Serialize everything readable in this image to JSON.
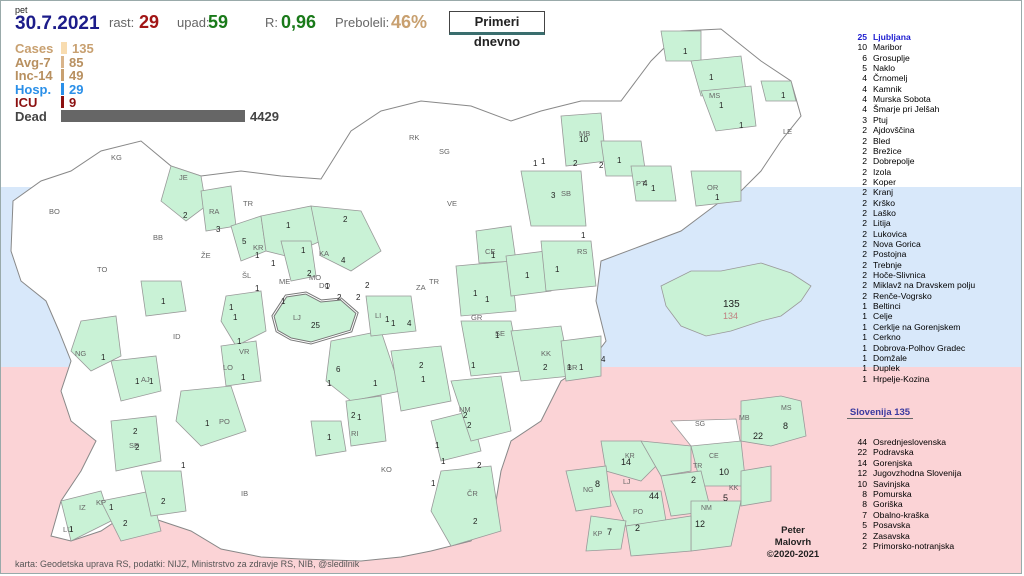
{
  "header": {
    "day": "pet",
    "date": "30.7.2021",
    "rast_label": "rast:",
    "rast_value": "29",
    "upad_label": "upad:",
    "upad_value": "59",
    "r_label": "R:",
    "r_value": "0,96",
    "preboleli_label": "Preboleli:",
    "preboleli_value": "46%",
    "primeri_button": "Primeri dnevno"
  },
  "stats": [
    {
      "label": "Cases",
      "value": "135",
      "color": "#f8dcb0",
      "label_color": "#c8a070",
      "fraction": 0.032
    },
    {
      "label": "Avg-7",
      "value": "85",
      "color": "#d9b48a",
      "label_color": "#b89060",
      "fraction": 0.018
    },
    {
      "label": "Inc-14",
      "value": "49",
      "color": "#c8a070",
      "label_color": "#b89060",
      "fraction": 0.011
    },
    {
      "label": "Hosp.",
      "value": "29",
      "color": "#2a8fe8",
      "label_color": "#2a8fe8",
      "fraction": 0.004
    },
    {
      "label": "ICU",
      "value": "9",
      "color": "#8b1010",
      "label_color": "#8b1010",
      "fraction": 0.002
    },
    {
      "label": "Dead",
      "value": "4429",
      "color": "#666666",
      "label_color": "#444444",
      "fraction": 1.0
    }
  ],
  "colors": {
    "with_cases": "#c9f2d6",
    "no_cases": "#ffffff",
    "border": "#999999",
    "label": "#666666"
  },
  "map_labels": {
    "municipal_codes": [
      "KG",
      "BO",
      "TO",
      "BB",
      "ŽE",
      "JE",
      "RA",
      "TR",
      "KR",
      "ŠL",
      "ME",
      "KA",
      "DO",
      "MO",
      "LJ",
      "VR",
      "LO",
      "ID",
      "NG",
      "AJ",
      "PO",
      "SE",
      "IZ",
      "KP",
      "LU",
      "RI",
      "KO",
      "IB",
      "ČR",
      "NM",
      "BR",
      "KK",
      "SE",
      "LI",
      "ZA",
      "TR",
      "CE",
      "RS",
      "SB",
      "PT",
      "OR",
      "MB",
      "MS",
      "LE",
      "RK",
      "SG",
      "VE",
      "GR"
    ],
    "case_numbers": [
      "1",
      "1",
      "2",
      "1",
      "1",
      "5",
      "3",
      "1",
      "1",
      "4",
      "2",
      "2",
      "1",
      "1",
      "1",
      "1",
      "25",
      "6",
      "1",
      "1",
      "1",
      "1",
      "1",
      "2",
      "2",
      "1",
      "2",
      "2",
      "1",
      "1",
      "2",
      "1",
      "1",
      "2",
      "1",
      "2",
      "1",
      "2",
      "1",
      "1",
      "4",
      "1",
      "1",
      "1",
      "1",
      "3",
      "10",
      "2",
      "2",
      "1",
      "1",
      "4",
      "1",
      "1",
      "1",
      "1",
      "1",
      "1",
      "1",
      "1",
      "1",
      "1",
      "2",
      "2",
      "1",
      "1",
      "1",
      "2",
      "1",
      "1",
      "4",
      "1",
      "1",
      "2",
      "2",
      "2",
      "1",
      "1"
    ],
    "inset_total": "135",
    "inset_previous": "134"
  },
  "ranking": [
    {
      "n": "25",
      "name": "Ljubljana"
    },
    {
      "n": "10",
      "name": "Maribor"
    },
    {
      "n": "6",
      "name": "Grosuplje"
    },
    {
      "n": "5",
      "name": "Naklo"
    },
    {
      "n": "4",
      "name": "Črnomelj"
    },
    {
      "n": "4",
      "name": "Kamnik"
    },
    {
      "n": "4",
      "name": "Murska Sobota"
    },
    {
      "n": "4",
      "name": "Šmarje pri Jelšah"
    },
    {
      "n": "3",
      "name": "Ptuj"
    },
    {
      "n": "2",
      "name": "Ajdovščina"
    },
    {
      "n": "2",
      "name": "Bled"
    },
    {
      "n": "2",
      "name": "Brežice"
    },
    {
      "n": "2",
      "name": "Dobrepolje"
    },
    {
      "n": "2",
      "name": "Izola"
    },
    {
      "n": "2",
      "name": "Koper"
    },
    {
      "n": "2",
      "name": "Kranj"
    },
    {
      "n": "2",
      "name": "Krško"
    },
    {
      "n": "2",
      "name": "Laško"
    },
    {
      "n": "2",
      "name": "Litija"
    },
    {
      "n": "2",
      "name": "Lukovica"
    },
    {
      "n": "2",
      "name": "Nova Gorica"
    },
    {
      "n": "2",
      "name": "Postojna"
    },
    {
      "n": "2",
      "name": "Trebnje"
    },
    {
      "n": "2",
      "name": "Hoče-Slivnica"
    },
    {
      "n": "2",
      "name": "Miklavž na Dravskem polju"
    },
    {
      "n": "2",
      "name": "Renče-Vogrsko"
    },
    {
      "n": "1",
      "name": "Beltinci"
    },
    {
      "n": "1",
      "name": "Celje"
    },
    {
      "n": "1",
      "name": "Cerklje na Gorenjskem"
    },
    {
      "n": "1",
      "name": "Cerkno"
    },
    {
      "n": "1",
      "name": "Dobrova-Polhov Gradec"
    },
    {
      "n": "1",
      "name": "Domžale"
    },
    {
      "n": "1",
      "name": "Duplek"
    },
    {
      "n": "1",
      "name": "Hrpelje-Kozina"
    }
  ],
  "slovenia_title": "Slovenija 135",
  "regions": [
    {
      "n": "44",
      "name": "Osrednjeslovenska"
    },
    {
      "n": "22",
      "name": "Podravska"
    },
    {
      "n": "14",
      "name": "Gorenjska"
    },
    {
      "n": "12",
      "name": "Jugovzhodna Slovenija"
    },
    {
      "n": "10",
      "name": "Savinjska"
    },
    {
      "n": "8",
      "name": "Pomurska"
    },
    {
      "n": "8",
      "name": "Goriška"
    },
    {
      "n": "7",
      "name": "Obalno-kraška"
    },
    {
      "n": "5",
      "name": "Posavska"
    },
    {
      "n": "2",
      "name": "Zasavska"
    },
    {
      "n": "2",
      "name": "Primorsko-notranjska"
    }
  ],
  "region_map_labels": [
    {
      "code": "SG",
      "n": ""
    },
    {
      "code": "MB",
      "n": "22"
    },
    {
      "code": "MS",
      "n": "8"
    },
    {
      "code": "KR",
      "n": "14"
    },
    {
      "code": "TR",
      "n": "2"
    },
    {
      "code": "CE",
      "n": "10"
    },
    {
      "code": "NG",
      "n": "8"
    },
    {
      "code": "LJ",
      "n": "44"
    },
    {
      "code": "KK",
      "n": "5"
    },
    {
      "code": "PO",
      "n": "2"
    },
    {
      "code": "NM",
      "n": "12"
    },
    {
      "code": "KP",
      "n": "7"
    }
  ],
  "author": {
    "line1": "Peter",
    "line2": "Malovrh",
    "line3": "©2020-2021"
  },
  "credits": "karta: Geodetska uprava RS,  podatki: NIJZ, Ministrstvo za zdravje RS, NIB, @sledilnik"
}
